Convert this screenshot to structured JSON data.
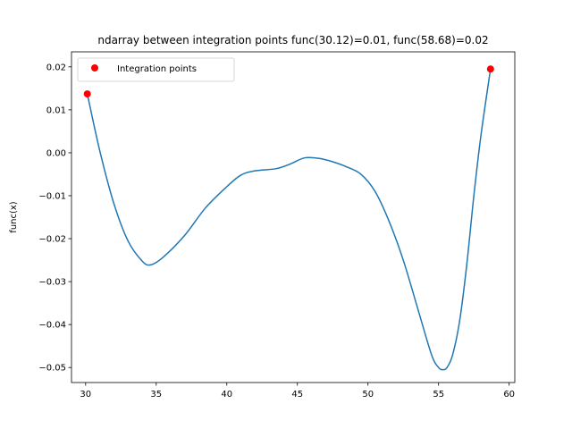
{
  "chart_data": {
    "type": "line",
    "title": "ndarray between integration points func(30.12)=0.01, func(58.68)=0.02",
    "xlabel": "",
    "ylabel": "func(x)",
    "xlim": [
      29.0,
      60.4
    ],
    "ylim": [
      -0.0535,
      0.0235
    ],
    "x_ticks": [
      30,
      35,
      40,
      45,
      50,
      55,
      60
    ],
    "y_ticks": [
      -0.05,
      -0.04,
      -0.03,
      -0.02,
      -0.01,
      0.0,
      0.01,
      0.02
    ],
    "x_tick_labels": [
      "30",
      "35",
      "40",
      "45",
      "50",
      "55",
      "60"
    ],
    "y_tick_labels": [
      "−0.05",
      "−0.04",
      "−0.03",
      "−0.02",
      "−0.01",
      "0.00",
      "0.01",
      "0.02"
    ],
    "grid": false,
    "legend_position": "top-left",
    "series": [
      {
        "name": "",
        "kind": "line",
        "color": "#1f77b4",
        "x": [
          30.12,
          31.0,
          32.0,
          33.0,
          34.0,
          34.6,
          35.5,
          37.0,
          38.5,
          40.0,
          41.0,
          42.0,
          43.5,
          44.5,
          45.5,
          46.5,
          47.5,
          48.5,
          49.5,
          50.5,
          51.5,
          52.5,
          53.5,
          54.5,
          55.0,
          55.3,
          55.6,
          56.0,
          56.5,
          57.0,
          57.5,
          58.0,
          58.68
        ],
        "y": [
          0.0137,
          0.0005,
          -0.0118,
          -0.0205,
          -0.0252,
          -0.0261,
          -0.0243,
          -0.0193,
          -0.0128,
          -0.0079,
          -0.0052,
          -0.0042,
          -0.0037,
          -0.0026,
          -0.0012,
          -0.0013,
          -0.0021,
          -0.0033,
          -0.005,
          -0.009,
          -0.016,
          -0.025,
          -0.036,
          -0.047,
          -0.05,
          -0.0505,
          -0.05,
          -0.047,
          -0.039,
          -0.026,
          -0.01,
          0.004,
          0.0195
        ]
      },
      {
        "name": "Integration points",
        "kind": "scatter",
        "color": "#ff0000",
        "x": [
          30.12,
          58.68
        ],
        "y": [
          0.0137,
          0.0195
        ]
      }
    ]
  }
}
